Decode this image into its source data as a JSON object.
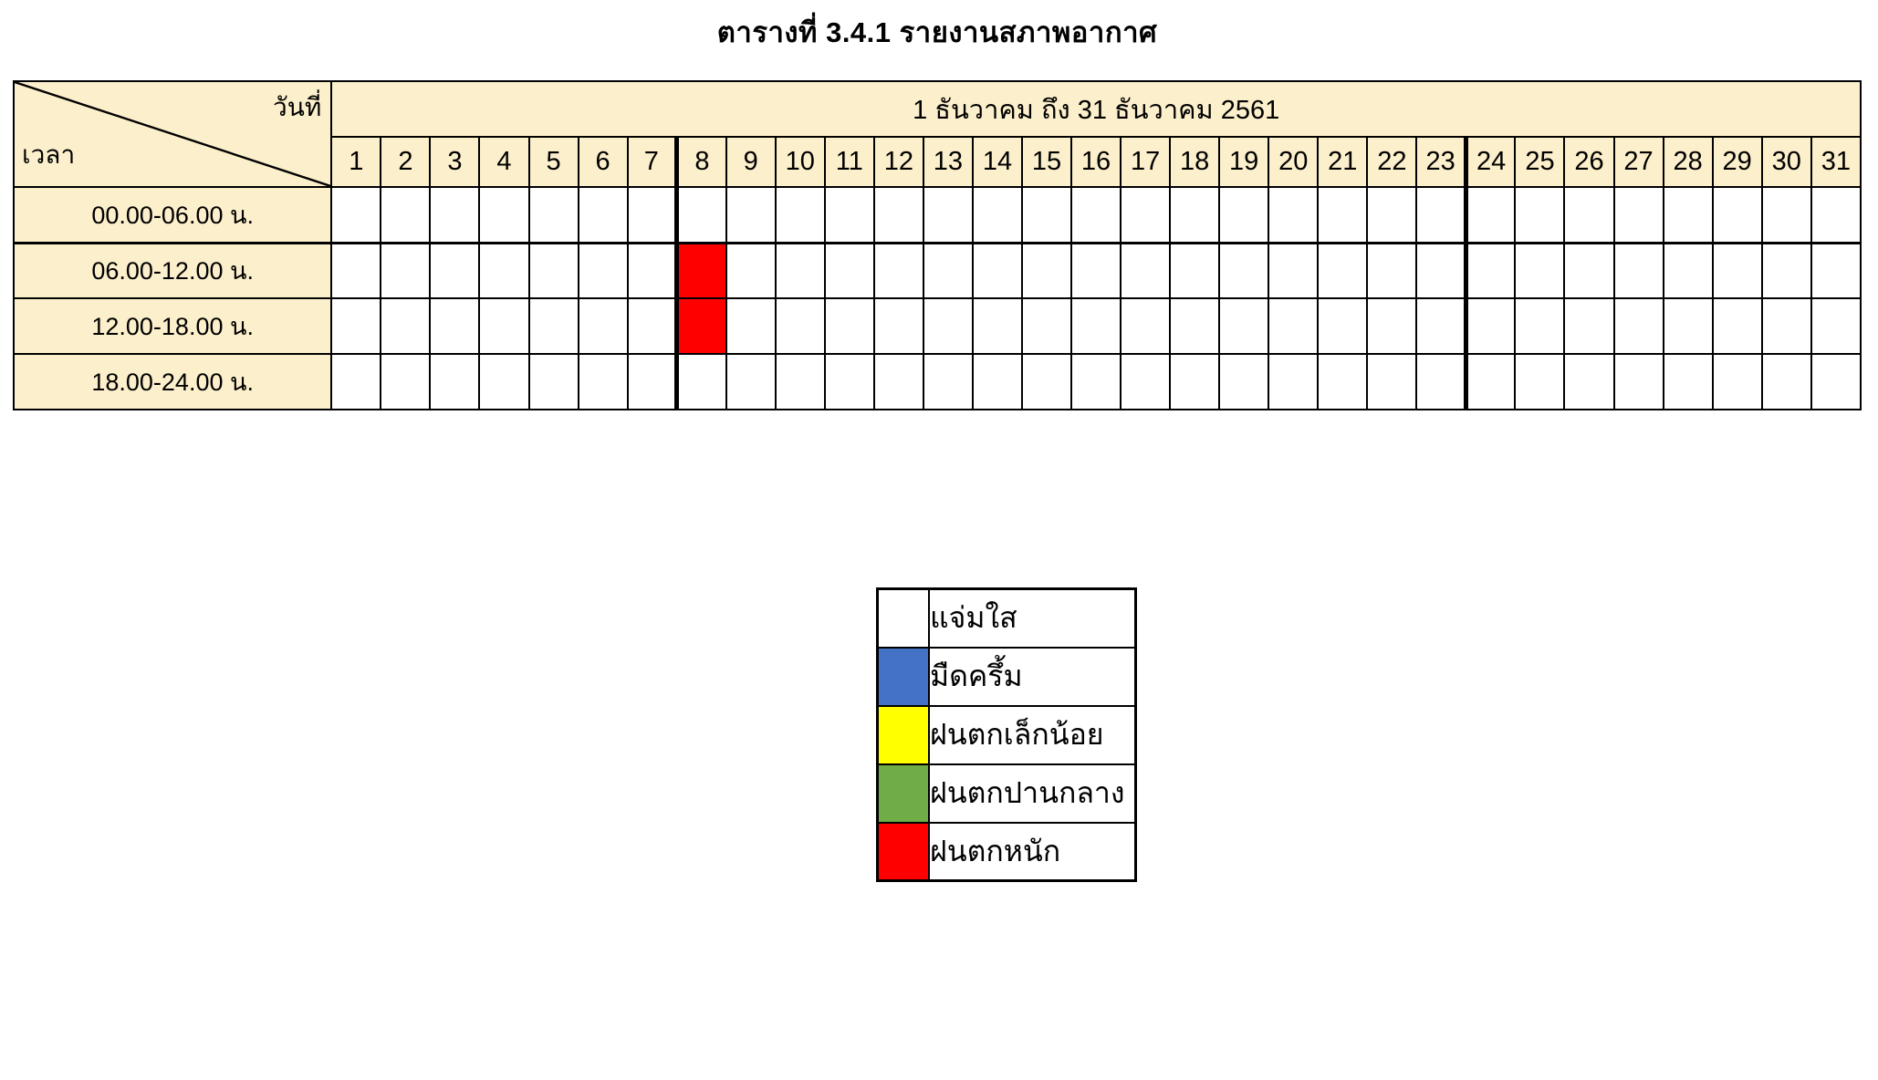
{
  "title": "ตารางที่ 3.4.1 รายงานสภาพอากาศ",
  "table": {
    "corner": {
      "top_right_label": "วันที่",
      "bottom_left_label": "เวลา"
    },
    "date_range": "1 ธันวาคม  ถึง 31 ธันวาคม  2561",
    "days": [
      "1",
      "2",
      "3",
      "4",
      "5",
      "6",
      "7",
      "8",
      "9",
      "10",
      "11",
      "12",
      "13",
      "14",
      "15",
      "16",
      "17",
      "18",
      "19",
      "20",
      "21",
      "22",
      "23",
      "24",
      "25",
      "26",
      "27",
      "28",
      "29",
      "30",
      "31"
    ],
    "time_rows": [
      "00.00-06.00 น.",
      "06.00-12.00 น.",
      "12.00-18.00 น.",
      "18.00-24.00 น."
    ],
    "marks": [
      {
        "day": "8",
        "day_index": 7,
        "row_index": 1,
        "time_row": "06.00-12.00 น.",
        "condition": "ฝนตกหนัก",
        "color": "#FF0000"
      },
      {
        "day": "8",
        "day_index": 7,
        "row_index": 2,
        "time_row": "12.00-18.00 น.",
        "condition": "ฝนตกหนัก",
        "color": "#FF0000"
      }
    ]
  },
  "legend": {
    "items": [
      {
        "label": "แจ่มใส",
        "color": "#FFFFFF"
      },
      {
        "label": "มืดครึ้ม",
        "color": "#4472C4"
      },
      {
        "label": "ฝนตกเล็กน้อย",
        "color": "#FFFF00"
      },
      {
        "label": "ฝนตกปานกลาง",
        "color": "#70AD47"
      },
      {
        "label": "ฝนตกหนัก",
        "color": "#FF0000"
      }
    ]
  },
  "colors": {
    "header_bg": "#FCEFCB",
    "border": "#000000",
    "cell_bg": "#FFFFFF"
  }
}
